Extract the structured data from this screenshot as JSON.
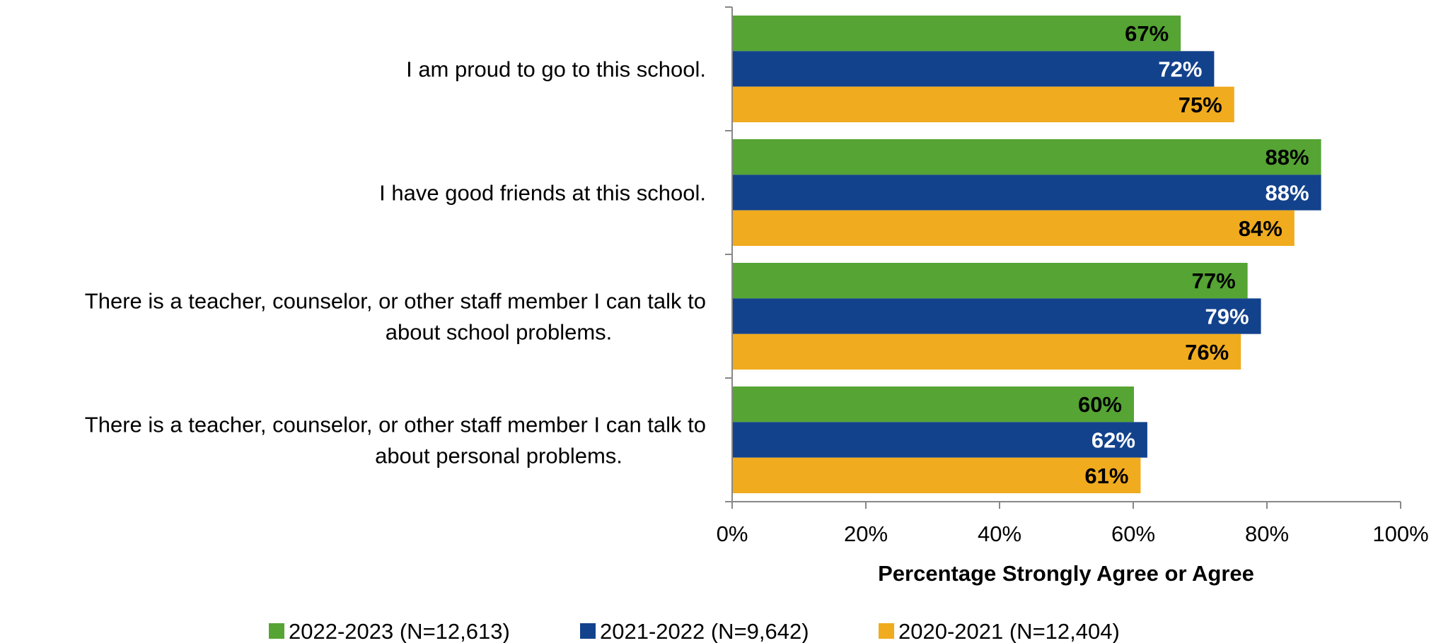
{
  "chart_data": {
    "type": "bar",
    "orientation": "horizontal",
    "categories": [
      [
        "I am proud to go to this school."
      ],
      [
        "I have good friends at this school."
      ],
      [
        "There is a teacher, counselor, or other staff member I can talk to",
        "about school problems."
      ],
      [
        "There is a teacher, counselor, or other staff member I can talk to",
        "about personal problems."
      ]
    ],
    "series": [
      {
        "name": "2022-2023 (N=12,613)",
        "color": "#55a434",
        "label_color": "#000000",
        "values": [
          67,
          88,
          77,
          60
        ]
      },
      {
        "name": "2021-2022 (N=9,642)",
        "color": "#13428c",
        "label_color": "#ffffff",
        "values": [
          72,
          88,
          79,
          62
        ]
      },
      {
        "name": "2020-2021 (N=12,404)",
        "color": "#f0ab1e",
        "label_color": "#000000",
        "values": [
          75,
          84,
          76,
          61
        ]
      }
    ],
    "value_suffix": "%",
    "xlabel": "Percentage Strongly Agree or Agree",
    "xlim": [
      0,
      100
    ],
    "xticks": [
      0,
      20,
      40,
      60,
      80,
      100
    ],
    "xtick_labels": [
      "0%",
      "20%",
      "40%",
      "60%",
      "80%",
      "100%"
    ],
    "grid": false,
    "legend_position": "bottom"
  }
}
